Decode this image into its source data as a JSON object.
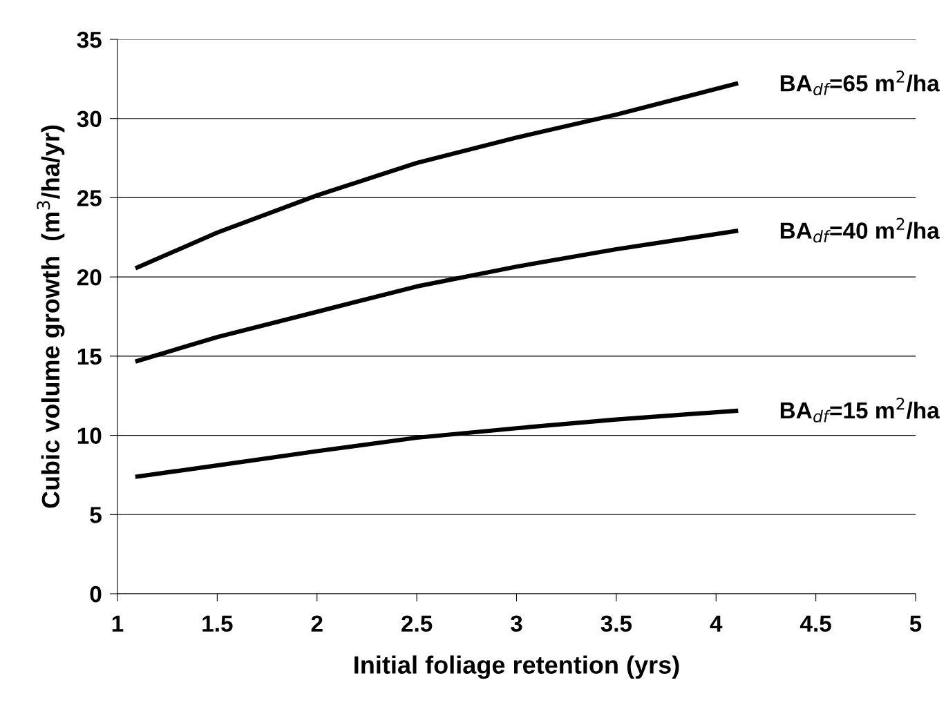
{
  "chart_data": {
    "type": "line",
    "xlabel": "Initial foliage retention (yrs)",
    "ylabel": "Cubic volume growth  (m$^{3}$/ha/yr)",
    "series": [
      {
        "color": "#000000",
        "x": [
          1.1,
          1.5,
          2,
          2.5,
          3,
          3.5,
          4.1
        ],
        "values": [
          20.6,
          22.8,
          25.15,
          27.2,
          28.8,
          30.25,
          32.2
        ]
      },
      {
        "color": "#000000",
        "x": [
          1.1,
          1.5,
          2,
          2.5,
          3,
          3.5,
          4.1
        ],
        "values": [
          14.7,
          16.2,
          17.8,
          19.4,
          20.65,
          21.75,
          22.9
        ]
      },
      {
        "color": "#000000",
        "x": [
          1.1,
          1.5,
          2,
          2.5,
          3,
          3.5,
          4.1
        ],
        "values": [
          7.4,
          8.1,
          9.0,
          9.85,
          10.45,
          11.0,
          11.55
        ]
      }
    ],
    "annotations": [
      "BA$_{df}$=65 m$^{2}$/ha",
      "BA$_{df}$=40 m$^{2}$/ha",
      "BA$_{df}$=15 m$^{2}$/ha"
    ],
    "xlim": [
      1,
      5
    ],
    "xticks": [
      1,
      1.5,
      2,
      2.5,
      3,
      3.5,
      4,
      4.5,
      5
    ],
    "ylim": [
      0,
      35
    ],
    "yticks": [
      0,
      5,
      10,
      15,
      20,
      25,
      30,
      35
    ],
    "grid": "y",
    "marker": "none",
    "line_style": "solid",
    "legend": false
  }
}
